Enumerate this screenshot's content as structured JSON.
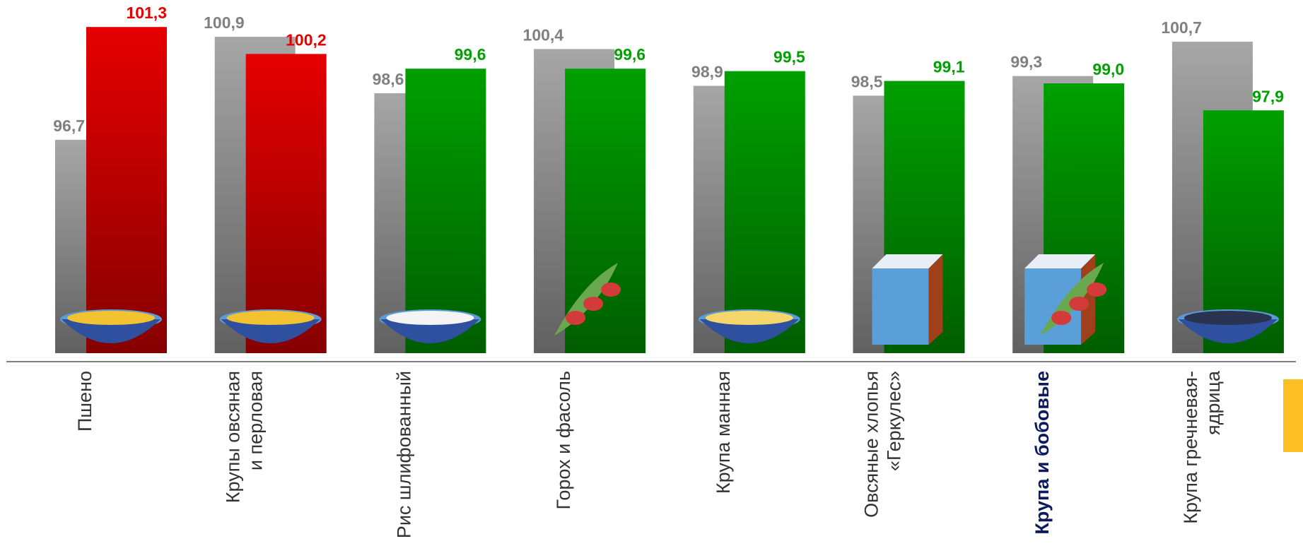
{
  "chart_data": {
    "type": "bar",
    "categories": [
      "Пшено",
      "Крупы овсяная\nи перловая",
      "Рис шлифованный",
      "Горох и фасоль",
      "Крупа манная",
      "Овсяные хлопья\n«Геркулес»",
      "Крупа и бобовые",
      "Крупа гречневая-\nядрица"
    ],
    "series": [
      {
        "color": "#a6a6a6",
        "values": [
          96.7,
          100.9,
          98.6,
          100.4,
          98.9,
          98.5,
          99.3,
          100.7
        ],
        "value_labels": [
          "96,7",
          "100,9",
          "98,6",
          "100,4",
          "98,9",
          "98,5",
          "99,3",
          "100,7"
        ]
      },
      {
        "colors": [
          "#e60000",
          "#e60000",
          "#00a000",
          "#00a000",
          "#00a000",
          "#00a000",
          "#00a000",
          "#00a000"
        ],
        "values": [
          101.3,
          100.2,
          99.6,
          99.6,
          99.5,
          99.1,
          99.0,
          97.9
        ],
        "value_labels": [
          "101,3",
          "100,2",
          "99,6",
          "99,6",
          "99,5",
          "99,1",
          "99,0",
          "97,9"
        ]
      }
    ],
    "ylim": [
      88,
      102.4
    ],
    "highlight_category": 6
  }
}
